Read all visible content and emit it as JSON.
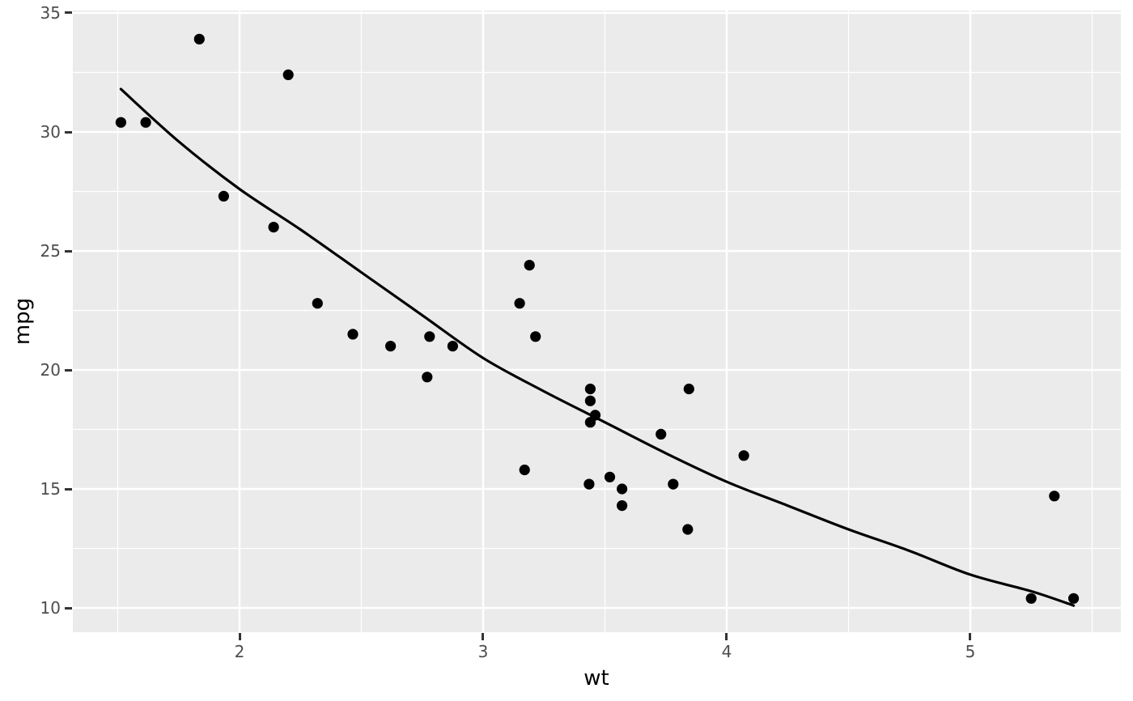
{
  "chart_data": {
    "type": "scatter",
    "title": "",
    "xlabel": "wt",
    "ylabel": "mpg",
    "x_ticks": [
      2,
      3,
      4,
      5
    ],
    "y_ticks": [
      10,
      15,
      20,
      25,
      30,
      35
    ],
    "x_minor": [
      1.5,
      2.5,
      3.5,
      4.5,
      5.5
    ],
    "y_minor": [
      12.5,
      17.5,
      22.5,
      27.5,
      32.5
    ],
    "xlim": [
      1.3156,
      5.618
    ],
    "ylim": [
      8.98,
      35.102
    ],
    "grid": "on",
    "legend": "none",
    "points": [
      [
        2.62,
        21.0
      ],
      [
        2.875,
        21.0
      ],
      [
        2.32,
        22.8
      ],
      [
        3.215,
        21.4
      ],
      [
        3.44,
        18.7
      ],
      [
        3.46,
        18.1
      ],
      [
        3.57,
        14.3
      ],
      [
        3.19,
        24.4
      ],
      [
        3.15,
        22.8
      ],
      [
        3.44,
        19.2
      ],
      [
        3.44,
        17.8
      ],
      [
        4.07,
        16.4
      ],
      [
        3.73,
        17.3
      ],
      [
        3.78,
        15.2
      ],
      [
        5.25,
        10.4
      ],
      [
        5.424,
        10.4
      ],
      [
        5.345,
        14.7
      ],
      [
        2.2,
        32.4
      ],
      [
        1.615,
        30.4
      ],
      [
        1.835,
        33.9
      ],
      [
        2.465,
        21.5
      ],
      [
        3.52,
        15.5
      ],
      [
        3.435,
        15.2
      ],
      [
        3.84,
        13.3
      ],
      [
        3.845,
        19.2
      ],
      [
        1.935,
        27.3
      ],
      [
        2.14,
        26.0
      ],
      [
        1.513,
        30.4
      ],
      [
        3.17,
        15.8
      ],
      [
        2.77,
        19.7
      ],
      [
        3.57,
        15.0
      ],
      [
        2.78,
        21.4
      ]
    ],
    "smooth_line": [
      [
        1.513,
        31.8
      ],
      [
        1.75,
        29.6
      ],
      [
        2.0,
        27.6
      ],
      [
        2.25,
        25.9
      ],
      [
        2.5,
        24.1
      ],
      [
        2.75,
        22.3
      ],
      [
        3.0,
        20.5
      ],
      [
        3.25,
        19.1
      ],
      [
        3.5,
        17.8
      ],
      [
        3.75,
        16.5
      ],
      [
        4.0,
        15.3
      ],
      [
        4.25,
        14.3
      ],
      [
        4.5,
        13.3
      ],
      [
        4.75,
        12.4
      ],
      [
        5.0,
        11.4
      ],
      [
        5.25,
        10.7
      ],
      [
        5.424,
        10.1
      ]
    ],
    "colors": {
      "background": "#FFFFFF",
      "panel": "#EBEBEB",
      "grid": "#FFFFFF",
      "point": "#000000",
      "line": "#000000",
      "tick_text": "#4D4D4D",
      "tick_mark": "#333333",
      "axis_title": "#000000"
    },
    "point_radius": 6.6,
    "line_width": 3.2
  }
}
